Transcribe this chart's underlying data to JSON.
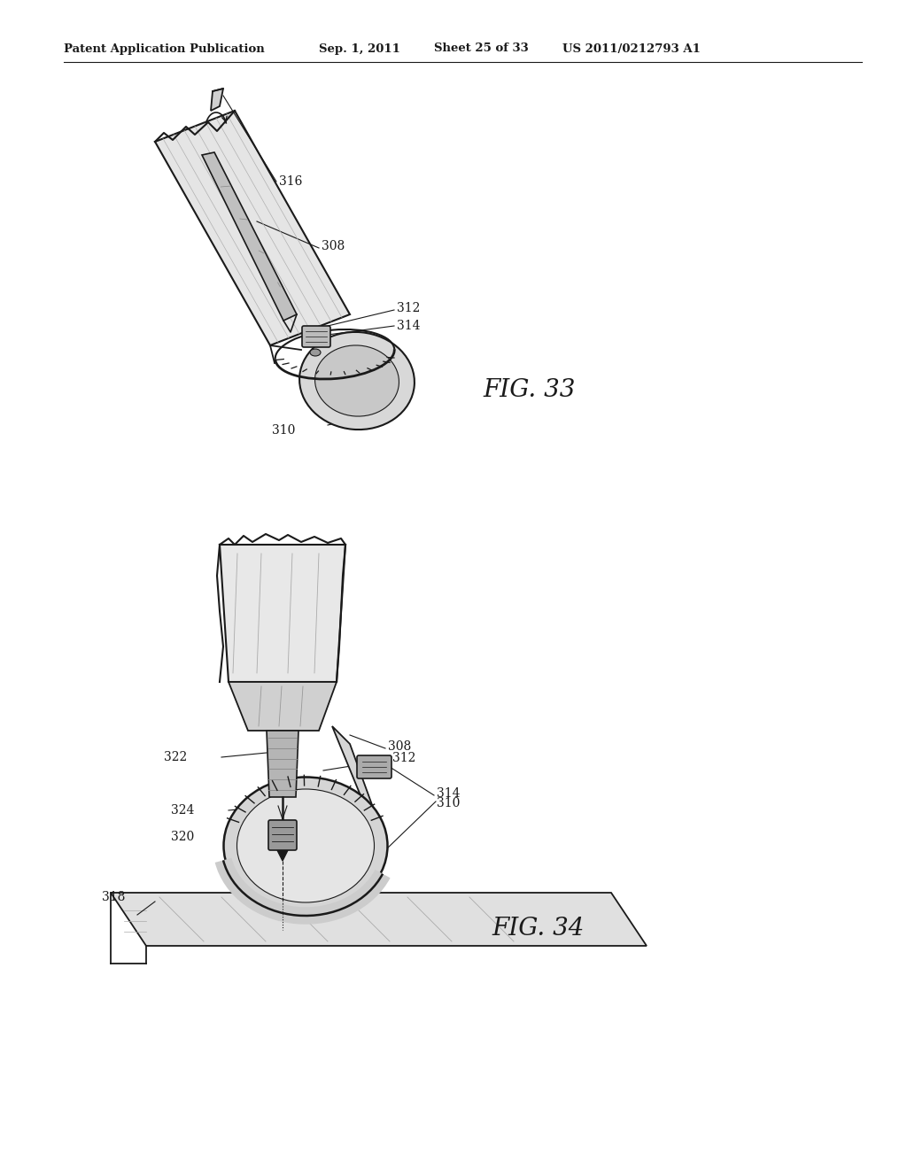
{
  "background_color": "#ffffff",
  "header_text": "Patent Application Publication",
  "header_date": "Sep. 1, 2011",
  "header_sheet": "Sheet 25 of 33",
  "header_patent": "US 2011/0212793 A1",
  "fig33_label": "FIG. 33",
  "fig34_label": "FIG. 34",
  "line_color": "#1a1a1a",
  "text_color": "#1a1a1a",
  "font_size_header": 9.5,
  "font_size_labels": 10,
  "font_size_fig": 18
}
